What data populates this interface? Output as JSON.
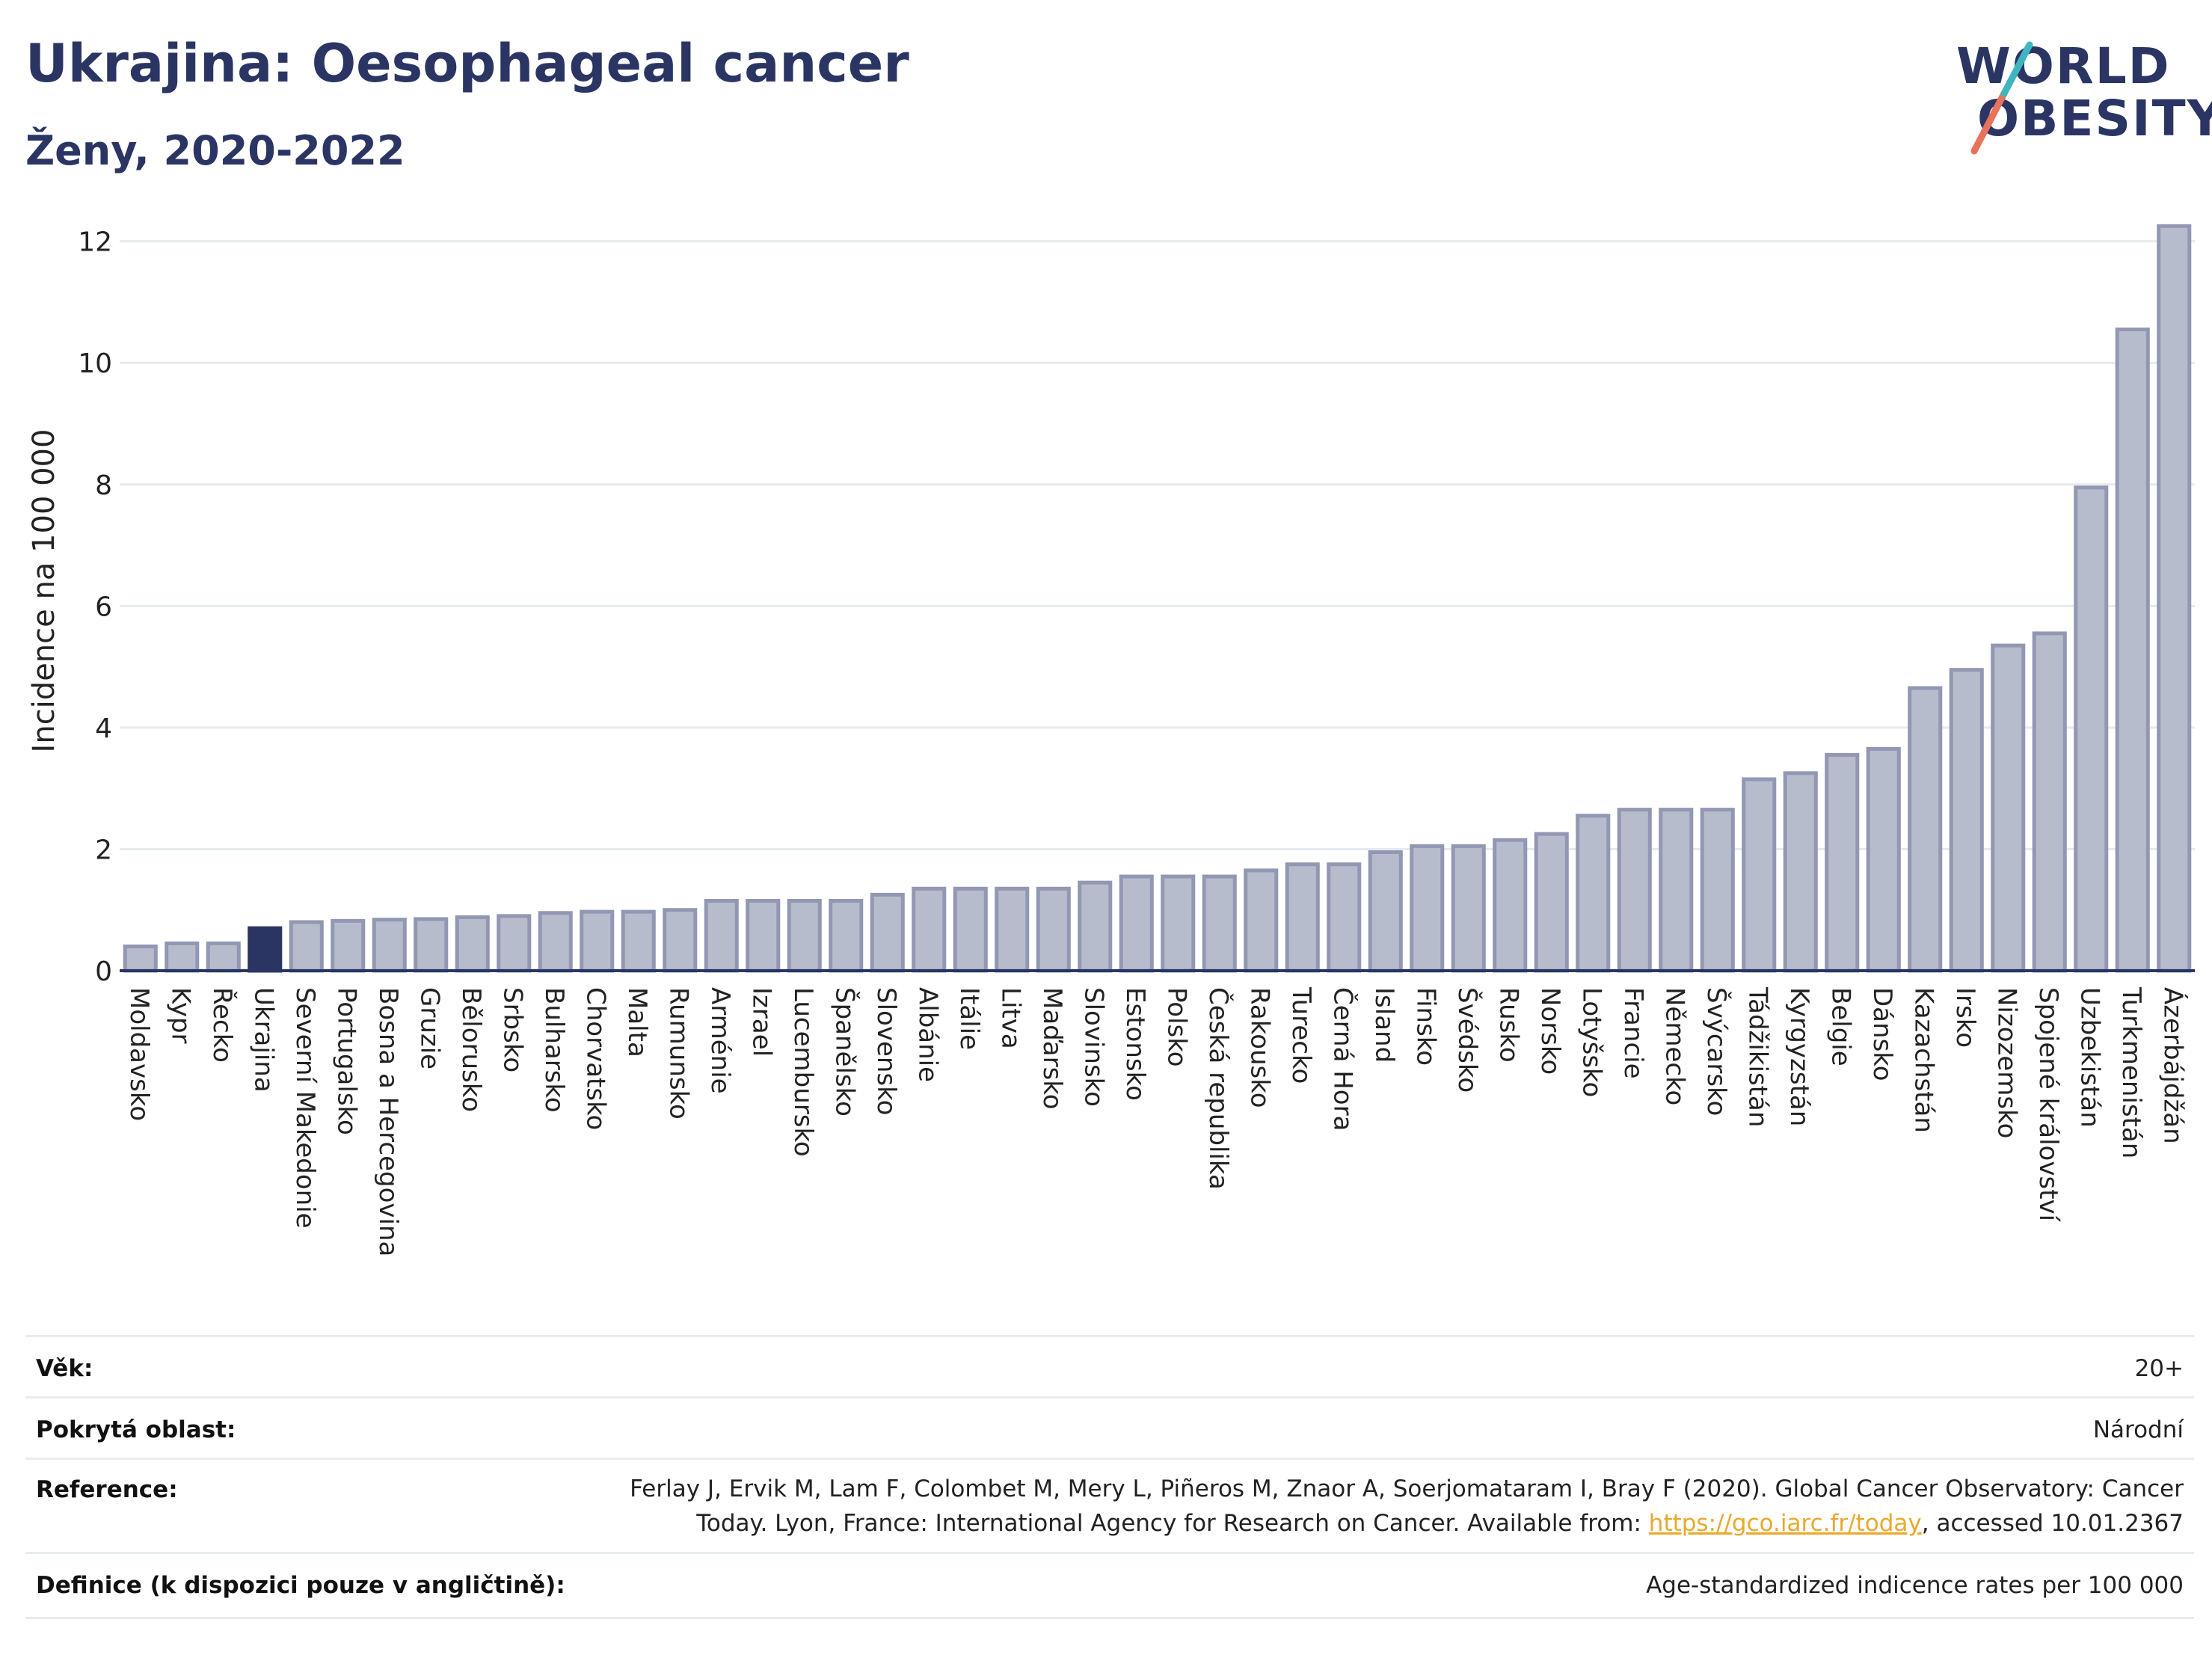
{
  "header": {
    "title": "Ukrajina: Oesophageal cancer",
    "subtitle": "Ženy, 2020-2022"
  },
  "logo": {
    "line1": "WORLD",
    "line2": "OBESITY"
  },
  "colors": {
    "bar": "#b7bccd",
    "bar_stroke": "#9297b3",
    "highlight": "#2b3564",
    "grid": "#e6e9ee"
  },
  "chart_data": {
    "type": "bar",
    "ylabel": "Incidence na 100 000",
    "xlabel": "",
    "ylim": [
      0,
      12.5
    ],
    "yticks": [
      0,
      2,
      4,
      6,
      8,
      10,
      12
    ],
    "grid": true,
    "highlight_category": "Ukrajina",
    "categories": [
      "Moldavsko",
      "Kypr",
      "Řecko",
      "Ukrajina",
      "Severní Makedonie",
      "Portugalsko",
      "Bosna a Hercegovina",
      "Gruzie",
      "Bělorusko",
      "Srbsko",
      "Bulharsko",
      "Chorvatsko",
      "Malta",
      "Rumunsko",
      "Arménie",
      "Izrael",
      "Lucembursko",
      "Španělsko",
      "Slovensko",
      "Albánie",
      "Itálie",
      "Litva",
      "Maďarsko",
      "Slovinsko",
      "Estonsko",
      "Polsko",
      "Česká republika",
      "Rakousko",
      "Turecko",
      "Černá Hora",
      "Island",
      "Finsko",
      "Švédsko",
      "Rusko",
      "Norsko",
      "Lotyšsko",
      "Francie",
      "Německo",
      "Švýcarsko",
      "Tádžikistán",
      "Kyrgyzstán",
      "Belgie",
      "Dánsko",
      "Kazachstán",
      "Irsko",
      "Nizozemsko",
      "Spojené království",
      "Uzbekistán",
      "Turkmenistán",
      "Ázerbájdžán"
    ],
    "values": [
      0.4,
      0.45,
      0.45,
      0.7,
      0.8,
      0.82,
      0.84,
      0.85,
      0.88,
      0.9,
      0.95,
      0.97,
      0.97,
      1.0,
      1.15,
      1.15,
      1.15,
      1.15,
      1.25,
      1.35,
      1.35,
      1.35,
      1.35,
      1.45,
      1.55,
      1.55,
      1.55,
      1.65,
      1.75,
      1.75,
      1.95,
      2.05,
      2.05,
      2.15,
      2.25,
      2.55,
      2.65,
      2.65,
      2.65,
      3.15,
      3.25,
      3.55,
      3.65,
      4.65,
      4.95,
      5.35,
      5.55,
      7.95,
      10.55,
      12.25
    ]
  },
  "meta": {
    "age_label": "Věk:",
    "age_value": "20+",
    "coverage_label": "Pokrytá oblast:",
    "coverage_value": "Národní",
    "reference_label": "Reference:",
    "reference_line1": "Ferlay J, Ervik M, Lam F, Colombet M, Mery L, Piñeros M, Znaor A, Soerjomataram I, Bray F (2020). Global Cancer Observatory: Cancer",
    "reference_line2_pre": "Today. Lyon, France: International Agency for Research on Cancer. Available from: ",
    "reference_link": "https://gco.iarc.fr/today",
    "reference_line2_post": ", accessed 10.01.2367",
    "definition_label": "Definice (k dispozici pouze v angličtině):",
    "definition_value": "Age-standardized indicence rates per 100 000"
  }
}
